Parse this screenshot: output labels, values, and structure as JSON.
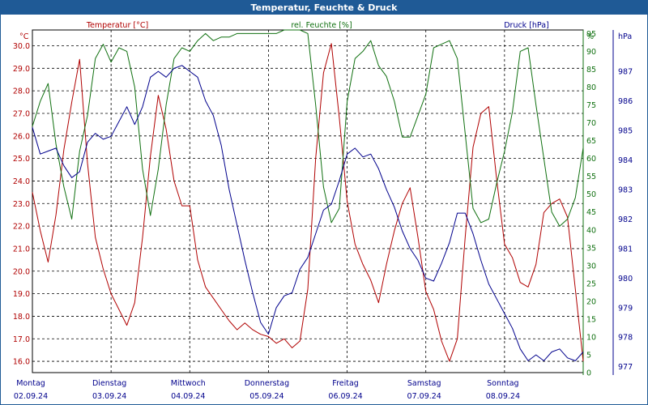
{
  "chart_data": {
    "type": "line",
    "title": "Temperatur, Feuchte & Druck",
    "x_labels": [
      {
        "day": "Montag",
        "date": "02.09.24"
      },
      {
        "day": "Dienstag",
        "date": "03.09.24"
      },
      {
        "day": "Mittwoch",
        "date": "04.09.24"
      },
      {
        "day": "Donnerstag",
        "date": "05.09.24"
      },
      {
        "day": "Freitag",
        "date": "06.09.24"
      },
      {
        "day": "Samstag",
        "date": "07.09.24"
      },
      {
        "day": "Sonntag",
        "date": "08.09.24"
      }
    ],
    "xlim_days": [
      0,
      7
    ],
    "grid": true,
    "axes": {
      "temperature": {
        "unit": "°C",
        "ylim": [
          15.5,
          30.7
        ],
        "ticks": [
          16.0,
          17.0,
          18.0,
          19.0,
          20.0,
          21.0,
          22.0,
          23.0,
          24.0,
          25.0,
          26.0,
          27.0,
          28.0,
          29.0,
          30.0
        ],
        "tick_labels": [
          "16.0",
          "17.0",
          "18.0",
          "19.0",
          "20.0",
          "21.0",
          "22.0",
          "23.0",
          "24.0",
          "25.0",
          "26.0",
          "27.0",
          "28.0",
          "29.0",
          "30.0"
        ]
      },
      "humidity": {
        "unit": "%",
        "ylim": [
          0,
          96
        ],
        "ticks": [
          0,
          5,
          10,
          15,
          20,
          25,
          30,
          35,
          40,
          45,
          50,
          55,
          60,
          65,
          70,
          75,
          80,
          85,
          90,
          95
        ],
        "tick_labels": [
          "0",
          "5",
          "10",
          "15",
          "20",
          "25",
          "30",
          "35",
          "40",
          "45",
          "50",
          "55",
          "60",
          "65",
          "70",
          "75",
          "80",
          "85",
          "90",
          "95"
        ]
      },
      "pressure": {
        "unit": "hPa",
        "ylim": [
          976.8,
          988.4
        ],
        "ticks": [
          977,
          978,
          979,
          980,
          981,
          982,
          983,
          984,
          985,
          986,
          987
        ],
        "tick_labels": [
          "977",
          "978",
          "979",
          "980",
          "981",
          "982",
          "983",
          "984",
          "985",
          "986",
          "987"
        ]
      }
    },
    "series": [
      {
        "name": "Temperatur [°C]",
        "axis": "temperature",
        "color": "#b00000",
        "x": [
          0,
          0.1,
          0.2,
          0.3,
          0.4,
          0.5,
          0.6,
          0.7,
          0.8,
          0.9,
          1.0,
          1.1,
          1.2,
          1.3,
          1.4,
          1.5,
          1.6,
          1.7,
          1.8,
          1.9,
          2.0,
          2.1,
          2.2,
          2.3,
          2.4,
          2.5,
          2.6,
          2.7,
          2.8,
          2.9,
          3.0,
          3.1,
          3.2,
          3.3,
          3.4,
          3.5,
          3.6,
          3.7,
          3.8,
          3.9,
          4.0,
          4.1,
          4.2,
          4.3,
          4.4,
          4.5,
          4.6,
          4.7,
          4.8,
          4.9,
          5.0,
          5.1,
          5.2,
          5.3,
          5.4,
          5.5,
          5.6,
          5.7,
          5.8,
          5.9,
          6.0,
          6.1,
          6.2,
          6.3,
          6.4,
          6.5,
          6.6,
          6.7,
          6.8,
          6.9,
          7.0
        ],
        "y": [
          23.5,
          21.8,
          20.4,
          22.5,
          25.4,
          27.5,
          29.4,
          24.8,
          21.5,
          20.1,
          19.0,
          18.3,
          17.6,
          18.6,
          21.5,
          25.1,
          27.8,
          26.3,
          24.0,
          22.9,
          22.9,
          20.5,
          19.3,
          18.8,
          18.3,
          17.8,
          17.4,
          17.7,
          17.4,
          17.2,
          17.1,
          16.8,
          17.0,
          16.6,
          16.9,
          19.2,
          25.0,
          28.8,
          30.1,
          26.8,
          23.1,
          21.2,
          20.3,
          19.6,
          18.6,
          20.3,
          21.8,
          23.0,
          23.7,
          21.5,
          19.1,
          18.3,
          16.9,
          16.0,
          17.0,
          21.5,
          25.5,
          27.0,
          27.3,
          24.1,
          21.2,
          20.6,
          19.5,
          19.3,
          20.3,
          22.6,
          23.0,
          23.2,
          22.4,
          19.2,
          16.0
        ]
      },
      {
        "name": "rel. Feuchte [%]",
        "axis": "humidity",
        "color": "#107010",
        "x": [
          0,
          0.1,
          0.2,
          0.3,
          0.4,
          0.5,
          0.6,
          0.7,
          0.8,
          0.9,
          1.0,
          1.1,
          1.2,
          1.3,
          1.4,
          1.5,
          1.6,
          1.7,
          1.8,
          1.9,
          2.0,
          2.1,
          2.2,
          2.3,
          2.4,
          2.5,
          2.6,
          2.7,
          2.8,
          2.9,
          3.0,
          3.1,
          3.2,
          3.3,
          3.4,
          3.5,
          3.6,
          3.7,
          3.8,
          3.9,
          4.0,
          4.1,
          4.2,
          4.3,
          4.4,
          4.5,
          4.6,
          4.7,
          4.8,
          4.9,
          5.0,
          5.1,
          5.2,
          5.3,
          5.4,
          5.5,
          5.6,
          5.7,
          5.8,
          5.9,
          6.0,
          6.1,
          6.2,
          6.3,
          6.4,
          6.5,
          6.6,
          6.7,
          6.8,
          6.9,
          7.0
        ],
        "y": [
          69,
          76,
          81,
          64,
          52,
          43,
          62,
          72,
          88,
          92,
          87,
          91,
          90,
          80,
          57,
          44,
          57,
          75,
          88,
          91,
          90,
          93,
          95,
          93,
          94,
          94,
          95,
          95,
          95,
          95,
          95,
          95,
          96,
          96,
          96,
          95,
          75,
          52,
          42,
          46,
          76,
          88,
          90,
          93,
          86,
          83,
          76,
          66,
          66,
          72,
          78,
          91,
          92,
          93,
          88,
          67,
          46,
          42,
          43,
          53,
          62,
          73,
          90,
          91,
          75,
          60,
          45,
          41,
          43,
          49,
          63
        ]
      },
      {
        "name": "Druck [hPa]",
        "axis": "pressure",
        "color": "#00008c",
        "x": [
          0,
          0.1,
          0.2,
          0.3,
          0.4,
          0.5,
          0.6,
          0.7,
          0.8,
          0.9,
          1.0,
          1.1,
          1.2,
          1.3,
          1.4,
          1.5,
          1.6,
          1.7,
          1.8,
          1.9,
          2.0,
          2.1,
          2.2,
          2.3,
          2.4,
          2.5,
          2.6,
          2.7,
          2.8,
          2.9,
          3.0,
          3.1,
          3.2,
          3.3,
          3.4,
          3.5,
          3.6,
          3.7,
          3.8,
          3.9,
          4.0,
          4.1,
          4.2,
          4.3,
          4.4,
          4.5,
          4.6,
          4.7,
          4.8,
          4.9,
          5.0,
          5.1,
          5.2,
          5.3,
          5.4,
          5.5,
          5.6,
          5.7,
          5.8,
          5.9,
          6.0,
          6.1,
          6.2,
          6.3,
          6.4,
          6.5,
          6.6,
          6.7,
          6.8,
          6.9,
          7.0
        ],
        "y": [
          985.1,
          984.2,
          984.3,
          984.4,
          983.8,
          983.4,
          983.6,
          984.6,
          984.9,
          984.7,
          984.8,
          985.3,
          985.8,
          985.2,
          985.8,
          986.8,
          987.0,
          986.8,
          987.1,
          987.2,
          987.0,
          986.8,
          986.0,
          985.5,
          984.5,
          983.0,
          981.8,
          980.6,
          979.5,
          978.5,
          978.1,
          979.0,
          979.4,
          979.5,
          980.3,
          980.7,
          981.5,
          982.3,
          982.5,
          983.3,
          984.2,
          984.4,
          984.1,
          984.2,
          983.7,
          983.0,
          982.4,
          981.6,
          981.0,
          980.6,
          980.0,
          979.9,
          980.5,
          981.2,
          982.2,
          982.2,
          981.5,
          980.6,
          979.8,
          979.3,
          978.8,
          978.3,
          977.6,
          977.2,
          977.4,
          977.2,
          977.5,
          977.6,
          977.3,
          977.2,
          977.5
        ]
      }
    ]
  }
}
